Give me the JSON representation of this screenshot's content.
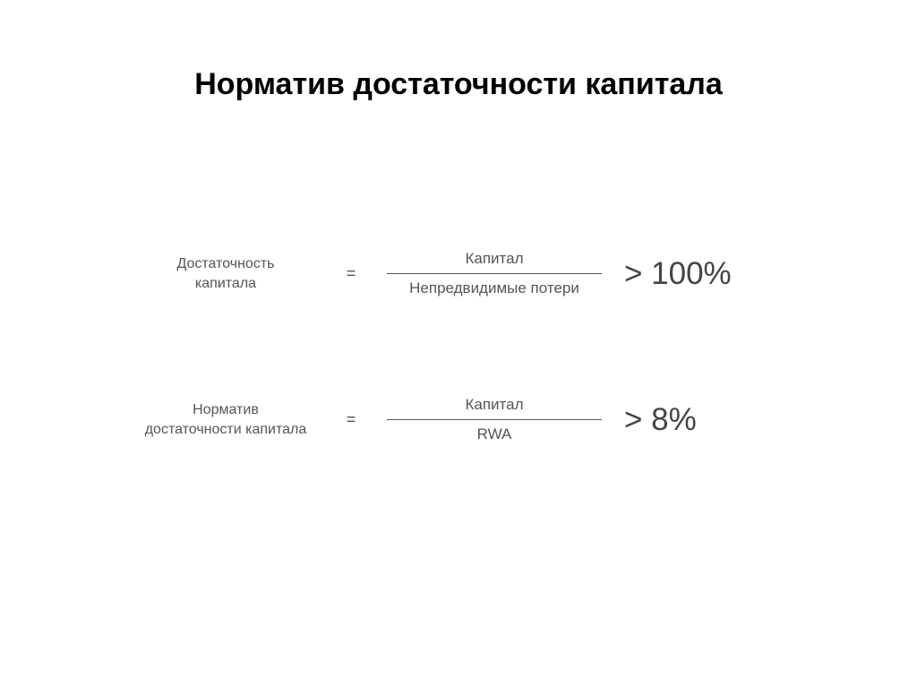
{
  "title": "Норматив достаточности капитала",
  "formula1": {
    "label_line1": "Достаточность",
    "label_line2": "капитала",
    "equals": "=",
    "numerator": "Капитал",
    "denominator": "Непредвидимые потери",
    "threshold": "> 100%"
  },
  "formula2": {
    "label_line1": "Норматив",
    "label_line2": "достаточности капитала",
    "equals": "=",
    "numerator": "Капитал",
    "denominator": "RWA",
    "threshold": "> 8%"
  },
  "styling": {
    "background_color": "#ffffff",
    "title_color": "#000000",
    "title_fontsize": 34,
    "title_fontweight": "bold",
    "label_color": "#555555",
    "label_fontsize": 16,
    "fraction_color": "#555555",
    "fraction_fontsize": 17,
    "threshold_color": "#444444",
    "threshold_fontsize": 35,
    "line_color": "#555555"
  }
}
